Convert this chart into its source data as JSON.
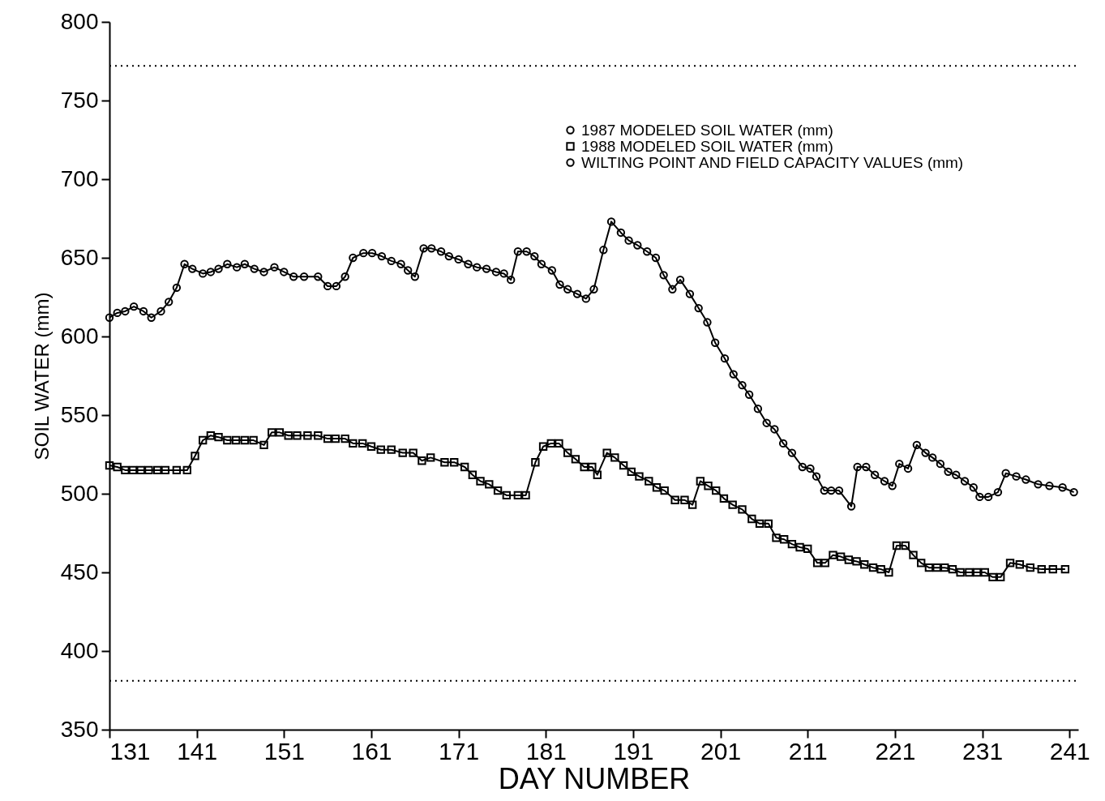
{
  "chart_data": {
    "type": "line",
    "xlabel": "DAY NUMBER",
    "ylabel": "SOIL WATER (mm)",
    "xlim": [
      131,
      242
    ],
    "ylim": [
      350,
      800
    ],
    "xticks": [
      131,
      141,
      151,
      161,
      171,
      181,
      191,
      201,
      211,
      221,
      231,
      241
    ],
    "yticks": [
      350,
      400,
      450,
      500,
      550,
      600,
      650,
      700,
      750,
      800
    ],
    "grid": false,
    "legend": "top right",
    "series": [
      {
        "name": "1987 MODELED SOIL WATER (mm)",
        "color": "#000000",
        "marker": "circle",
        "line_style": "solid",
        "x": [
          131.0,
          131.9,
          132.8,
          133.8,
          134.9,
          135.8,
          136.9,
          137.8,
          138.7,
          139.6,
          140.5,
          141.7,
          142.6,
          143.5,
          144.5,
          145.6,
          146.5,
          147.6,
          148.7,
          149.9,
          151.0,
          152.1,
          153.3,
          154.9,
          156.0,
          157.0,
          158.0,
          158.9,
          160.1,
          161.1,
          162.2,
          163.3,
          164.4,
          165.2,
          166.0,
          167.0,
          167.9,
          169.0,
          169.9,
          171.0,
          172.1,
          173.1,
          174.2,
          175.3,
          176.2,
          177.0,
          177.8,
          178.8,
          179.7,
          180.5,
          181.7,
          182.6,
          183.5,
          184.6,
          185.6,
          186.5,
          187.6,
          188.5,
          189.6,
          190.5,
          191.5,
          192.6,
          193.6,
          194.5,
          195.5,
          196.4,
          197.5,
          198.5,
          199.5,
          200.4,
          201.5,
          202.5,
          203.5,
          204.3,
          205.3,
          206.3,
          207.2,
          208.2,
          209.2,
          210.4,
          211.3,
          212.0,
          212.9,
          213.7,
          214.6,
          216.0,
          216.7,
          217.7,
          218.7,
          219.8,
          220.7,
          221.5,
          222.5,
          223.5,
          224.5,
          225.3,
          226.2,
          227.1,
          228.0,
          229.0,
          230.0,
          230.7,
          231.7,
          232.8,
          233.7,
          234.9,
          236.0,
          237.4,
          238.7,
          240.2,
          241.5
        ],
        "values": [
          612,
          615,
          616,
          619,
          616,
          612,
          616,
          622,
          631,
          646,
          643,
          640,
          641,
          643,
          646,
          644,
          646,
          643,
          641,
          644,
          641,
          638,
          638,
          638,
          632,
          632,
          638,
          650,
          653,
          653,
          651,
          648,
          646,
          642,
          638,
          656,
          656,
          654,
          651,
          649,
          646,
          644,
          643,
          641,
          640,
          636,
          654,
          654,
          651,
          646,
          642,
          633,
          630,
          627,
          624,
          630,
          655,
          673,
          666,
          661,
          658,
          654,
          650,
          639,
          630,
          636,
          627,
          618,
          609,
          596,
          586,
          576,
          569,
          563,
          554,
          545,
          541,
          532,
          526,
          517,
          516,
          511,
          502,
          502,
          502,
          492,
          517,
          517,
          512,
          508,
          505,
          519,
          516,
          531,
          526,
          523,
          519,
          514,
          512,
          508,
          504,
          498,
          498,
          501,
          513,
          511,
          509,
          506,
          505,
          504,
          501
        ]
      },
      {
        "name": "1988 MODELED SOIL WATER (mm)",
        "color": "#000000",
        "marker": "square",
        "line_style": "solid",
        "x": [
          131.0,
          131.9,
          132.8,
          133.7,
          134.6,
          135.5,
          136.5,
          137.4,
          138.7,
          139.9,
          140.8,
          141.7,
          142.6,
          143.5,
          144.5,
          145.5,
          146.5,
          147.5,
          148.7,
          149.6,
          150.5,
          151.5,
          152.5,
          153.7,
          154.9,
          156.0,
          156.9,
          158.0,
          158.9,
          160.0,
          161.0,
          162.1,
          163.3,
          164.6,
          165.8,
          166.8,
          167.8,
          169.4,
          170.5,
          171.7,
          172.6,
          173.5,
          174.5,
          175.5,
          176.5,
          177.8,
          178.7,
          179.8,
          180.7,
          181.6,
          182.5,
          183.5,
          184.4,
          185.4,
          186.3,
          186.9,
          188.0,
          188.9,
          189.9,
          190.8,
          191.7,
          192.8,
          193.7,
          194.6,
          195.8,
          196.9,
          197.8,
          198.7,
          199.6,
          200.5,
          201.4,
          202.4,
          203.5,
          204.6,
          205.5,
          206.5,
          207.4,
          208.3,
          209.2,
          210.1,
          211.0,
          212.1,
          213.0,
          213.9,
          214.8,
          215.7,
          216.6,
          217.5,
          218.5,
          219.4,
          220.3,
          221.2,
          222.2,
          223.1,
          224.0,
          224.9,
          225.8,
          226.7,
          227.6,
          228.5,
          229.5,
          230.4,
          231.3,
          232.2,
          233.1,
          234.2,
          235.3,
          236.5,
          237.8,
          239.1,
          240.5
        ],
        "values": [
          518,
          517,
          515,
          515,
          515,
          515,
          515,
          515,
          515,
          515,
          524,
          534,
          537,
          536,
          534,
          534,
          534,
          534,
          531,
          539,
          539,
          537,
          537,
          537,
          537,
          535,
          535,
          535,
          532,
          532,
          530,
          528,
          528,
          526,
          526,
          521,
          523,
          520,
          520,
          517,
          512,
          508,
          506,
          502,
          499,
          499,
          499,
          520,
          530,
          532,
          532,
          526,
          522,
          517,
          517,
          512,
          526,
          523,
          518,
          514,
          511,
          508,
          504,
          502,
          496,
          496,
          493,
          508,
          505,
          502,
          497,
          493,
          490,
          484,
          481,
          481,
          472,
          471,
          468,
          466,
          465,
          456,
          456,
          461,
          460,
          458,
          457,
          455,
          453,
          452,
          450,
          467,
          467,
          461,
          456,
          453,
          453,
          453,
          452,
          450,
          450,
          450,
          450,
          447,
          447,
          456,
          455,
          453,
          452,
          452,
          452
        ]
      },
      {
        "name": "WILTING POINT AND FIELD CAPACITY VALUES (mm)",
        "color": "#000000",
        "marker": "none",
        "line_style": "dotted",
        "x": [
          131,
          242
        ],
        "values": [
          772,
          772
        ]
      },
      {
        "color": "#000000",
        "marker": "none",
        "line_style": "dotted",
        "x": [
          131,
          242
        ],
        "values": [
          381,
          381
        ]
      }
    ]
  }
}
